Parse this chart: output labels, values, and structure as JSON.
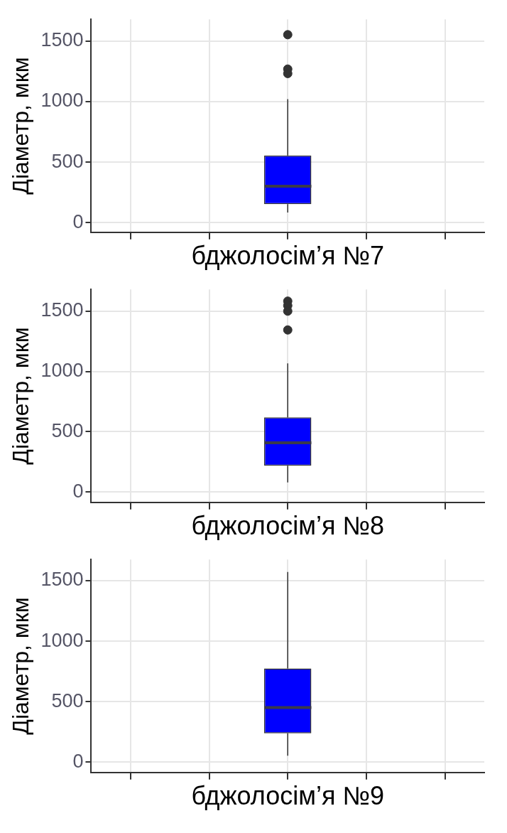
{
  "chart_data": [
    {
      "type": "box",
      "xlabel": "бджолосім’я №7",
      "ylabel": "Діаметр, мкм",
      "categories": [
        null,
        null,
        null,
        null,
        null
      ],
      "color": "#0000ff",
      "boxes": [
        null,
        null,
        {
          "low": 84,
          "q1": 153,
          "median": 300,
          "q3": 555,
          "high": 1020,
          "outliers": [
            1232,
            1269,
            1553
          ]
        },
        null,
        null
      ],
      "ylim": [
        -80,
        1680
      ],
      "yticks": [
        0,
        500,
        1000,
        1500
      ],
      "grid": true,
      "tick_labels": "y"
    },
    {
      "type": "box",
      "xlabel": "бджолосім’я №8",
      "ylabel": "Діаметр, мкм",
      "categories": [
        null,
        null,
        null,
        null,
        null
      ],
      "color": "#0000ff",
      "boxes": [
        null,
        null,
        {
          "low": 80,
          "q1": 218,
          "median": 408,
          "q3": 620,
          "high": 1067,
          "outliers": [
            1344,
            1500,
            1546,
            1583
          ]
        },
        null,
        null
      ],
      "ylim": [
        -85,
        1680
      ],
      "yticks": [
        0,
        500,
        1000,
        1500
      ],
      "grid": true,
      "tick_labels": "y"
    },
    {
      "type": "box",
      "xlabel": "бджолосім’я №9",
      "ylabel": "Діаметр, мкм",
      "categories": [
        null,
        null,
        null,
        null,
        null
      ],
      "color": "#0000ff",
      "boxes": [
        null,
        null,
        {
          "low": 54,
          "q1": 238,
          "median": 452,
          "q3": 774,
          "high": 1572
        },
        null,
        null
      ],
      "ylim": [
        -85,
        1675
      ],
      "yticks": [
        0,
        500,
        1000,
        1500
      ],
      "grid": true,
      "tick_labels": "y"
    }
  ]
}
